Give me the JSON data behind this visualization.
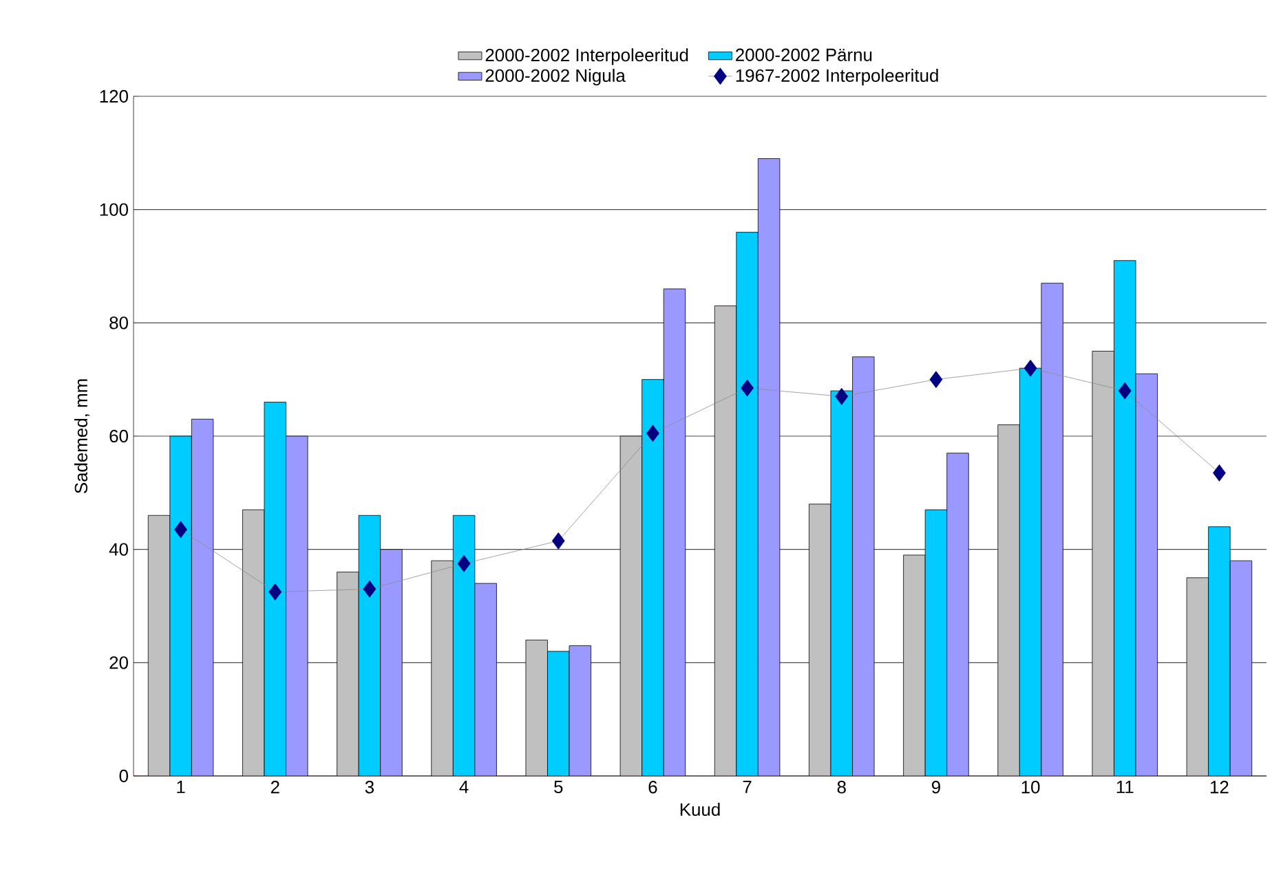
{
  "chart_data": {
    "type": "bar",
    "xlabel": "Kuud",
    "ylabel": "Sademed, mm",
    "categories": [
      "1",
      "2",
      "3",
      "4",
      "5",
      "6",
      "7",
      "8",
      "9",
      "10",
      "11",
      "12"
    ],
    "series": [
      {
        "name": "2000-2002 Interpoleeritud",
        "color": "#c0c0c0",
        "values": [
          46,
          47,
          36,
          38,
          24,
          60,
          83,
          48,
          39,
          62,
          75,
          35
        ]
      },
      {
        "name": "2000-2002 Pärnu",
        "color": "#00ccff",
        "values": [
          60,
          66,
          46,
          46,
          22,
          70,
          96,
          68,
          47,
          72,
          91,
          44
        ]
      },
      {
        "name": "2000-2002 Nigula",
        "color": "#9999ff",
        "values": [
          63,
          60,
          40,
          34,
          23,
          86,
          109,
          74,
          57,
          87,
          71,
          38
        ]
      },
      {
        "name": "1967-2002 Interpoleeritud",
        "type": "line",
        "color": "#000080",
        "marker": "diamond",
        "values": [
          43.5,
          32.5,
          33,
          37.5,
          41.5,
          60.5,
          68.5,
          67,
          70,
          72,
          68,
          53.5
        ]
      }
    ],
    "ylim": [
      0,
      120
    ],
    "yticks": [
      0,
      20,
      40,
      60,
      80,
      100,
      120
    ],
    "grid": "y",
    "legend": "top"
  }
}
